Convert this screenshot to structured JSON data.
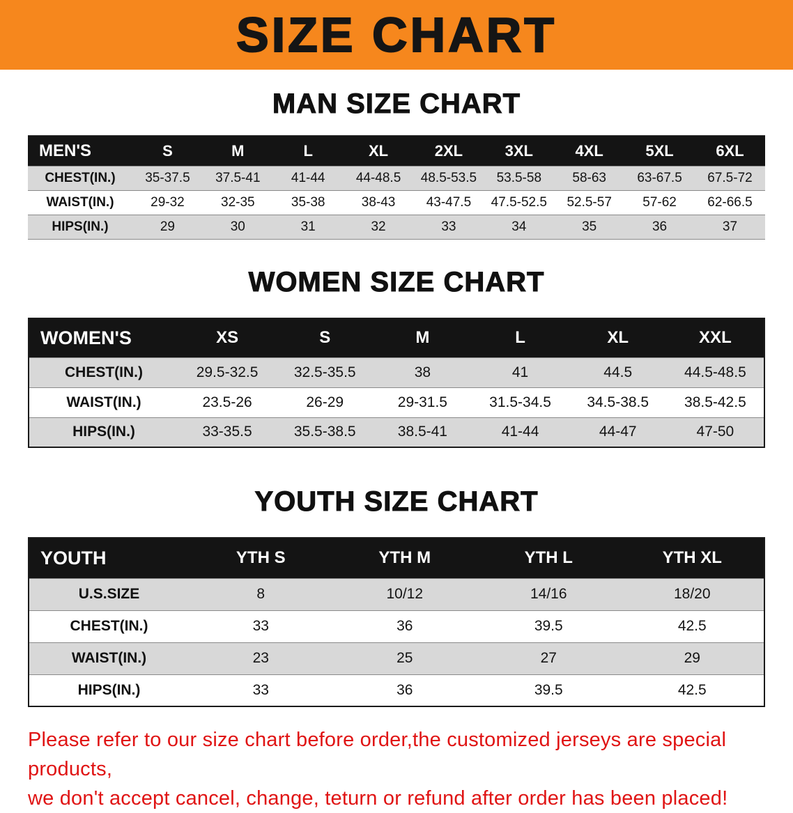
{
  "banner": {
    "title": "SIZE CHART"
  },
  "colors": {
    "banner-bg": "#F6871D",
    "title-text": "#151515",
    "table-header-bg": "#141414",
    "table-header-text": "#FFFFFF",
    "row-stripe": "#D8D8D8",
    "disclaimer-text": "#E01414"
  },
  "chart_data": [
    {
      "type": "table",
      "title": "MAN SIZE CHART",
      "corner": "MEN'S",
      "columns": [
        "S",
        "M",
        "L",
        "XL",
        "2XL",
        "3XL",
        "4XL",
        "5XL",
        "6XL"
      ],
      "rows": [
        {
          "label": "CHEST(IN.)",
          "values": [
            "35-37.5",
            "37.5-41",
            "41-44",
            "44-48.5",
            "48.5-53.5",
            "53.5-58",
            "58-63",
            "63-67.5",
            "67.5-72"
          ]
        },
        {
          "label": "WAIST(IN.)",
          "values": [
            "29-32",
            "32-35",
            "35-38",
            "38-43",
            "43-47.5",
            "47.5-52.5",
            "52.5-57",
            "57-62",
            "62-66.5"
          ]
        },
        {
          "label": "HIPS(IN.)",
          "values": [
            "29",
            "30",
            "31",
            "32",
            "33",
            "34",
            "35",
            "36",
            "37"
          ]
        }
      ]
    },
    {
      "type": "table",
      "title": "WOMEN SIZE CHART",
      "corner": "WOMEN'S",
      "columns": [
        "XS",
        "S",
        "M",
        "L",
        "XL",
        "XXL"
      ],
      "rows": [
        {
          "label": "CHEST(IN.)",
          "values": [
            "29.5-32.5",
            "32.5-35.5",
            "38",
            "41",
            "44.5",
            "44.5-48.5"
          ]
        },
        {
          "label": "WAIST(IN.)",
          "values": [
            "23.5-26",
            "26-29",
            "29-31.5",
            "31.5-34.5",
            "34.5-38.5",
            "38.5-42.5"
          ]
        },
        {
          "label": "HIPS(IN.)",
          "values": [
            "33-35.5",
            "35.5-38.5",
            "38.5-41",
            "41-44",
            "44-47",
            "47-50"
          ]
        }
      ]
    },
    {
      "type": "table",
      "title": "YOUTH SIZE CHART",
      "corner": "YOUTH",
      "columns": [
        "YTH S",
        "YTH M",
        "YTH L",
        "YTH XL"
      ],
      "rows": [
        {
          "label": "U.S.SIZE",
          "values": [
            "8",
            "10/12",
            "14/16",
            "18/20"
          ]
        },
        {
          "label": "CHEST(IN.)",
          "values": [
            "33",
            "36",
            "39.5",
            "42.5"
          ]
        },
        {
          "label": "WAIST(IN.)",
          "values": [
            "23",
            "25",
            "27",
            "29"
          ]
        },
        {
          "label": "HIPS(IN.)",
          "values": [
            "33",
            "36",
            "39.5",
            "42.5"
          ]
        }
      ]
    }
  ],
  "footer": {
    "line1": "Please refer to our size chart before order,the customized jerseys are special products,",
    "line2": "we don't accept cancel, change, teturn or refund after order has been placed!"
  }
}
